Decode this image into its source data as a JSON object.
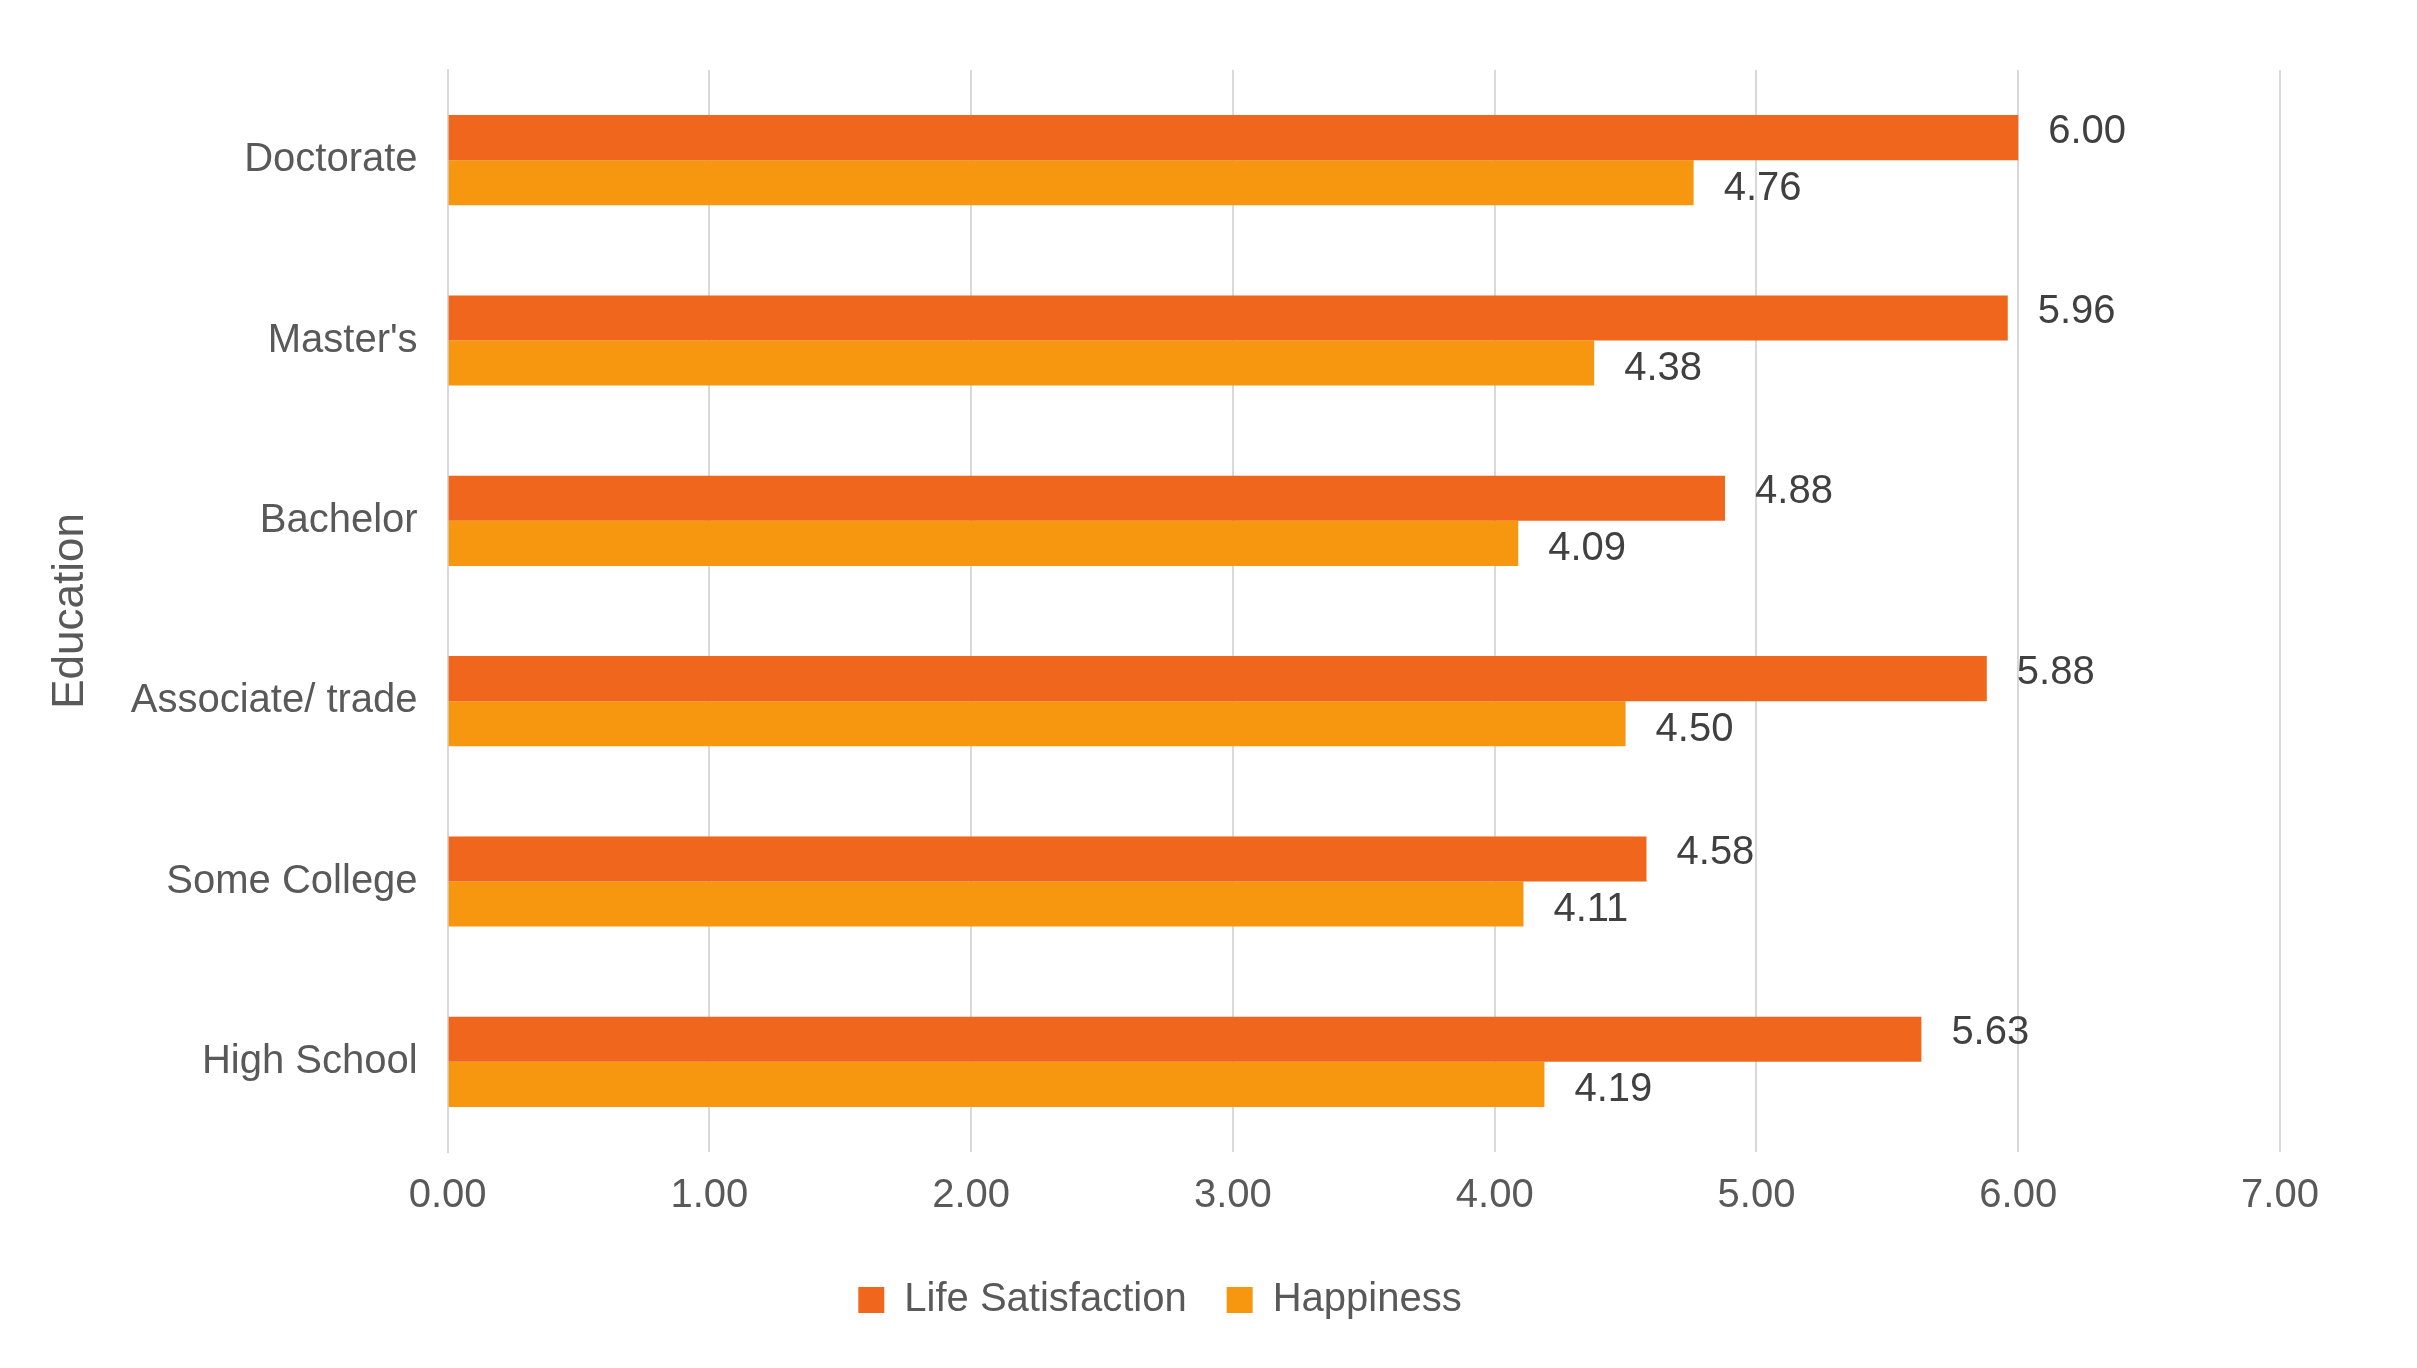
{
  "chart_data": {
    "type": "bar",
    "orientation": "horizontal",
    "ylabel": "Education",
    "categories": [
      "Doctorate",
      "Master's",
      "Bachelor",
      "Associate/ trade",
      "Some College",
      "High School"
    ],
    "series": [
      {
        "name": "Life Satisfaction",
        "color": "#f0661c",
        "values": [
          6.0,
          5.96,
          4.88,
          5.88,
          4.58,
          5.63
        ],
        "value_labels": [
          "6.00",
          "5.96",
          "4.88",
          "5.88",
          "4.58",
          "5.63"
        ]
      },
      {
        "name": "Happiness",
        "color": "#f7960f",
        "values": [
          4.76,
          4.38,
          4.09,
          4.5,
          4.11,
          4.19
        ],
        "value_labels": [
          "4.76",
          "4.38",
          "4.09",
          "4.50",
          "4.11",
          "4.19"
        ]
      }
    ],
    "xlim": [
      0,
      7
    ],
    "xticks": [
      {
        "value": 0,
        "label": "0.00"
      },
      {
        "value": 1,
        "label": "1.00"
      },
      {
        "value": 2,
        "label": "2.00"
      },
      {
        "value": 3,
        "label": "3.00"
      },
      {
        "value": 4,
        "label": "4.00"
      },
      {
        "value": 5,
        "label": "5.00"
      },
      {
        "value": 6,
        "label": "6.00"
      },
      {
        "value": 7,
        "label": "7.00"
      }
    ],
    "grid": "x",
    "legend": "bottom"
  }
}
